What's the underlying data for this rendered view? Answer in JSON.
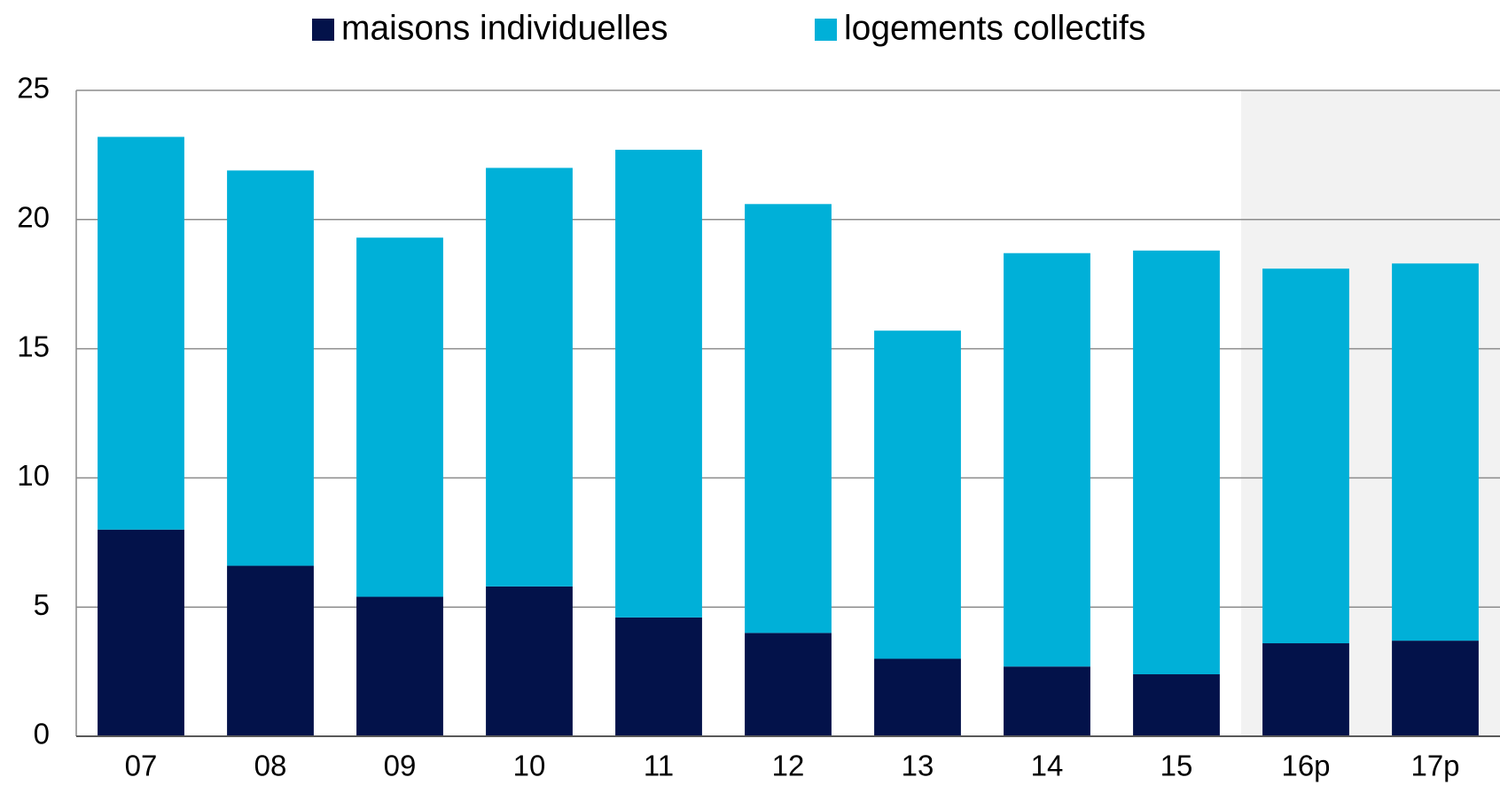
{
  "chart_data": {
    "type": "stacked_bar",
    "categories": [
      "07",
      "08",
      "09",
      "10",
      "11",
      "12",
      "13",
      "14",
      "15",
      "16p",
      "17p"
    ],
    "series": [
      {
        "name": "maisons individuelles",
        "color": "#03124a",
        "values": [
          8.0,
          6.6,
          5.4,
          5.8,
          4.6,
          4.0,
          3.0,
          2.7,
          2.4,
          3.6,
          3.7
        ]
      },
      {
        "name": "logements collectifs",
        "color": "#00b0d8",
        "values": [
          15.2,
          15.3,
          13.9,
          16.2,
          18.1,
          16.6,
          12.7,
          16.0,
          16.4,
          14.5,
          14.6
        ]
      }
    ],
    "ylim": [
      0,
      25
    ],
    "yticks": [
      0,
      5,
      10,
      15,
      20,
      25
    ],
    "grid": true,
    "legend": "top"
  }
}
